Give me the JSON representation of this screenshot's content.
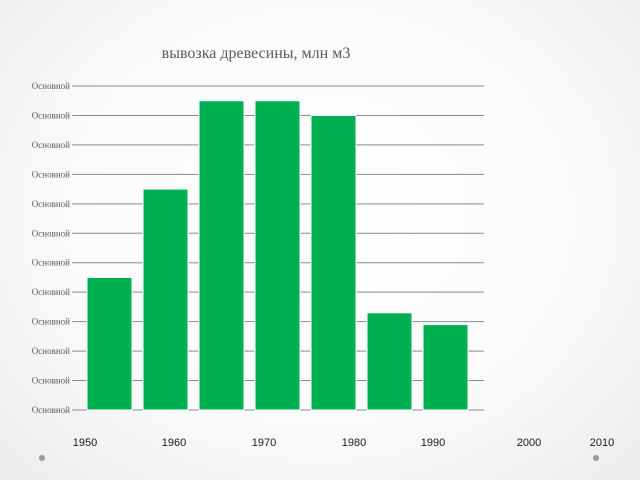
{
  "chart_data": {
    "type": "bar",
    "title": "вывозка древесины, млн м3",
    "xlabel": "",
    "ylabel": "",
    "y_tick_labels": [
      "Основной",
      "Основной",
      "Основной",
      "Основной",
      "Основной",
      "Основной",
      "Основной",
      "Основной",
      "Основной",
      "Основной",
      "Основной",
      "Основной"
    ],
    "x_tick_labels": [
      "1950",
      "1960",
      "1970",
      "1980",
      "1990",
      "2000",
      "2010"
    ],
    "values": [
      45,
      75,
      105,
      105,
      100,
      33,
      29
    ],
    "ylim": [
      0,
      110
    ],
    "grid": true,
    "legend": "none",
    "bar_color": "#00b050"
  }
}
